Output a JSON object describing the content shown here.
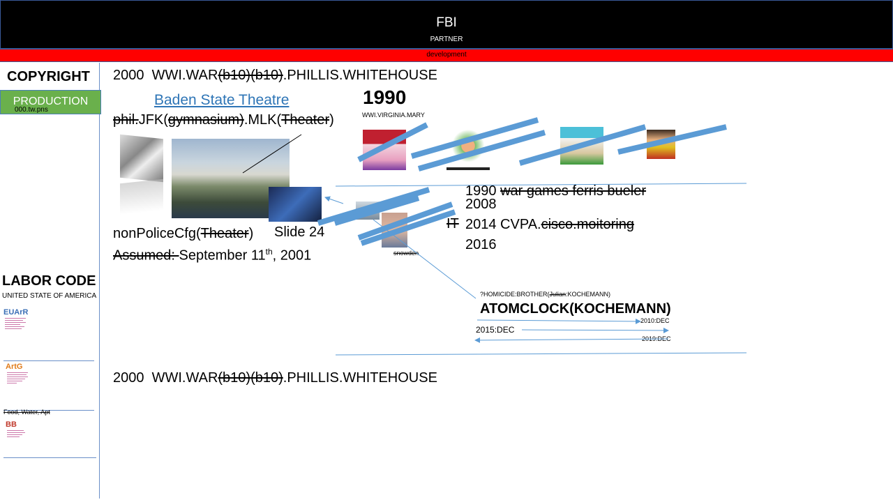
{
  "header": {
    "title": "FBI",
    "subtitle": "PARTNER"
  },
  "dev_bar": {
    "label": "development"
  },
  "sidebar": {
    "copyright": "COPYRIGHT",
    "production_button": "PRODUCTION",
    "production_file": "000.tw.pns",
    "labor_code": "LABOR CODE",
    "country": "UNITED STATE OF AMERICA",
    "docs": [
      {
        "logo": "EUArR"
      },
      {
        "logo": "ArtG"
      },
      {
        "logo": "BB"
      }
    ],
    "food_note": "Food, Water, Apt"
  },
  "main": {
    "line1": {
      "prefix": "2000  WWI.WAR",
      "struck": "(b10)(b10)",
      "suffix": ".PHILLIS.WHITEHOUSE"
    },
    "baden": "Baden State Theatre",
    "jfk": {
      "s1": "phil.",
      "t1": "JFK(",
      "s2": "gymnasium)",
      "t2": ".MLK(",
      "s3": "Theater",
      "t3": ")"
    },
    "nonpolice": {
      "t1": "nonPoliceCfg(",
      "s1": "Theater",
      "t2": ")"
    },
    "slide": "Slide 24",
    "assumed": {
      "struck": "Assumed: ",
      "text": "September 11",
      "sup": "th",
      "tail": ", 2001"
    },
    "line_bottom": {
      "prefix": "2000  WWI.WAR",
      "struck": "(b10)(b10)",
      "suffix": ".PHILLIS.WHITEHOUSE"
    }
  },
  "timeline": {
    "year": "1990",
    "virginia": "WWI.VIRGINIA.MARY",
    "snowden": "snowden",
    "it": "IT",
    "t1990": {
      "text": "1990 ",
      "struck": "war games ferris bueler"
    },
    "t2008": "2008",
    "t2014": {
      "text": "2014 CVPA.",
      "struck": "cisco.moitoring"
    },
    "t2016": "2016",
    "homicide": {
      "t1": "?HOMICIDE:BROTHER(",
      "struck": "Julian",
      "t2": ":KOCHEMANN)"
    },
    "atomclock": "ATOMCLOCK(KOCHEMANN)",
    "d2010": "2010:DEC",
    "d2015": "2015:DEC",
    "d2019": "2019:DEC"
  },
  "colors": {
    "accent_blue": "#5b9bd5",
    "dev_red": "#ff0000",
    "prod_green": "#6ab04c",
    "link_blue": "#2e75b6"
  }
}
